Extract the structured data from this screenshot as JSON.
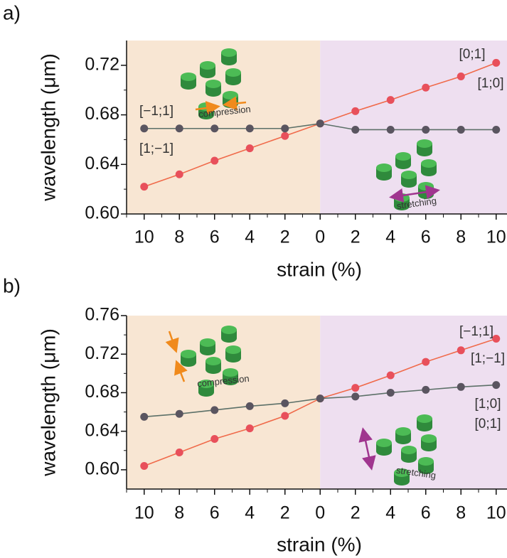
{
  "chart_data": [
    {
      "type": "line",
      "panel_label": "a)",
      "x_label": "strain (%)",
      "y_label": "wavelength (μm)",
      "categories": [
        "10",
        "8",
        "6",
        "4",
        "2",
        "0",
        "2",
        "4",
        "6",
        "8",
        "10"
      ],
      "background_colors": [
        "#f8e6d3",
        "#eedff0"
      ],
      "ylim": [
        0.6,
        0.74
      ],
      "yticks": [
        {
          "value": 0.6,
          "label": "0.60"
        },
        0.64,
        0.68,
        0.72
      ],
      "series": [
        {
          "color": "#e8505b",
          "line_color": "#f06a4a",
          "values": [
            0.622,
            0.632,
            0.643,
            0.653,
            0.663,
            0.673,
            0.683,
            0.692,
            0.702,
            0.711,
            0.722
          ]
        },
        {
          "color": "#5a5560",
          "line_color": "#5c7068",
          "values": [
            0.669,
            0.669,
            0.669,
            0.669,
            0.669,
            0.673,
            0.668,
            0.668,
            0.668,
            0.668,
            0.668
          ]
        }
      ],
      "annotations": [
        "[−1;1]",
        "[1;−1]",
        "[0;1]",
        "[1;0]",
        "compression",
        "stretching"
      ]
    },
    {
      "type": "line",
      "panel_label": "b)",
      "x_label": "strain (%)",
      "y_label": "wavelength (μm)",
      "categories": [
        "10",
        "8",
        "6",
        "4",
        "2",
        "0",
        "2",
        "4",
        "6",
        "8",
        "10"
      ],
      "background_colors": [
        "#f8e6d3",
        "#eedff0"
      ],
      "ylim": [
        0.58,
        0.76
      ],
      "yticks": [
        {
          "value": 0.6,
          "label": "0.60"
        },
        0.64,
        0.68,
        0.72,
        0.76
      ],
      "series": [
        {
          "color": "#e8505b",
          "line_color": "#f06a4a",
          "values": [
            0.604,
            0.618,
            0.632,
            0.643,
            0.656,
            0.674,
            0.685,
            0.698,
            0.712,
            0.724,
            0.736
          ]
        },
        {
          "color": "#5a5560",
          "line_color": "#5c7068",
          "values": [
            0.655,
            0.658,
            0.662,
            0.666,
            0.669,
            0.674,
            0.676,
            0.68,
            0.683,
            0.686,
            0.688
          ]
        }
      ],
      "annotations": [
        "[−1;1]",
        "[1;−1]",
        "[1;0]",
        "[0;1]",
        "compression",
        "stretching"
      ]
    }
  ]
}
